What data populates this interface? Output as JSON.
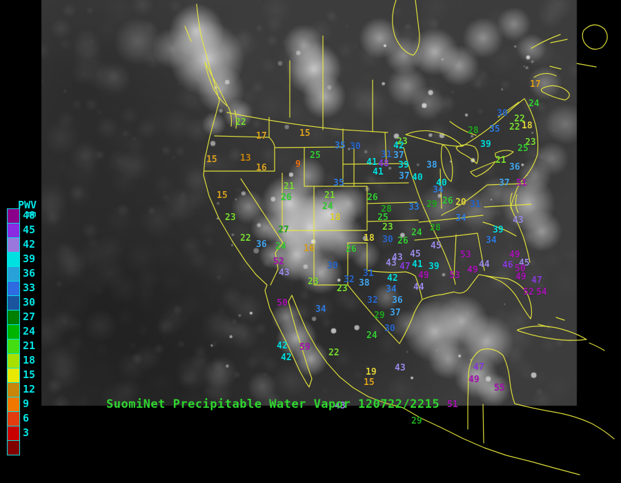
{
  "header": {
    "title": "SuomiNet Precipitable Water Vapor 120722/2215",
    "title_color": "#2FD62F"
  },
  "legend": {
    "title": "PWV",
    "unit": "mm",
    "tick_color": "#00E5E5",
    "values": [
      48,
      45,
      42,
      39,
      36,
      33,
      30,
      27,
      24,
      21,
      18,
      15,
      12,
      9,
      6,
      3
    ],
    "colors": [
      "#8B008B",
      "#8A2BE2",
      "#9977DD",
      "#00E0E0",
      "#28A0D8",
      "#2F6BE0",
      "#1A549E",
      "#007F00",
      "#00B400",
      "#44DD11",
      "#A8E000",
      "#E8E800",
      "#C8860B",
      "#F07800",
      "#E23C0F",
      "#C80000",
      "#800000"
    ]
  },
  "palette": [
    {
      "min": 49,
      "color": "#A713B3"
    },
    {
      "min": 46,
      "color": "#8A3BDC"
    },
    {
      "min": 43,
      "color": "#9B8BE8"
    },
    {
      "min": 39,
      "color": "#00DFDF"
    },
    {
      "min": 36,
      "color": "#43A7F0"
    },
    {
      "min": 33,
      "color": "#2F7BE0"
    },
    {
      "min": 30,
      "color": "#2767CE"
    },
    {
      "min": 27,
      "color": "#1FA81F"
    },
    {
      "min": 24,
      "color": "#35CC35"
    },
    {
      "min": 21,
      "color": "#7ADD33"
    },
    {
      "min": 18,
      "color": "#E2D53A"
    },
    {
      "min": 15,
      "color": "#DCA21F"
    },
    {
      "min": 12,
      "color": "#C8860B"
    },
    {
      "min": 9,
      "color": "#ED6F0E"
    },
    {
      "min": 6,
      "color": "#E0330F"
    },
    {
      "min": 3,
      "color": "#C40000"
    },
    {
      "min": 0,
      "color": "#8B0000"
    }
  ],
  "map": {
    "background": "#000000",
    "border_color": "#E9E93C"
  },
  "stations": [
    [
      22,
      341,
      171
    ],
    [
      17,
      371,
      191
    ],
    [
      15,
      434,
      187
    ],
    [
      25,
      449,
      219
    ],
    [
      35,
      485,
      205
    ],
    [
      30,
      507,
      206
    ],
    [
      15,
      299,
      225
    ],
    [
      13,
      348,
      223
    ],
    [
      16,
      371,
      237
    ],
    [
      9,
      428,
      232
    ],
    [
      15,
      314,
      277
    ],
    [
      23,
      326,
      309
    ],
    [
      22,
      348,
      339
    ],
    [
      36,
      371,
      348
    ],
    [
      21,
      411,
      264
    ],
    [
      26,
      407,
      280
    ],
    [
      27,
      403,
      327
    ],
    [
      24,
      399,
      351
    ],
    [
      52,
      396,
      373
    ],
    [
      43,
      404,
      389
    ],
    [
      50,
      401,
      433
    ],
    [
      59,
      434,
      497
    ],
    [
      42,
      401,
      495
    ],
    [
      42,
      407,
      512
    ],
    [
      22,
      476,
      505
    ],
    [
      34,
      457,
      442
    ],
    [
      23,
      446,
      402
    ],
    [
      23,
      488,
      412
    ],
    [
      30,
      474,
      379
    ],
    [
      32,
      498,
      399
    ],
    [
      38,
      520,
      404
    ],
    [
      31,
      526,
      390
    ],
    [
      26,
      501,
      355
    ],
    [
      16,
      440,
      354
    ],
    [
      18,
      478,
      309
    ],
    [
      24,
      467,
      293
    ],
    [
      21,
      470,
      277
    ],
    [
      35,
      483,
      259
    ],
    [
      18,
      527,
      339
    ],
    [
      26,
      532,
      280
    ],
    [
      28,
      552,
      297
    ],
    [
      25,
      547,
      309
    ],
    [
      23,
      554,
      323
    ],
    [
      30,
      554,
      341
    ],
    [
      26,
      576,
      343
    ],
    [
      33,
      592,
      294
    ],
    [
      29,
      618,
      290
    ],
    [
      26,
      641,
      285
    ],
    [
      20,
      660,
      287
    ],
    [
      31,
      681,
      290
    ],
    [
      34,
      660,
      310
    ],
    [
      24,
      596,
      331
    ],
    [
      28,
      623,
      324
    ],
    [
      45,
      624,
      350
    ],
    [
      45,
      594,
      362
    ],
    [
      43,
      568,
      367
    ],
    [
      43,
      559,
      375
    ],
    [
      47,
      579,
      380
    ],
    [
      41,
      597,
      377
    ],
    [
      39,
      621,
      380
    ],
    [
      42,
      561,
      397
    ],
    [
      49,
      606,
      393
    ],
    [
      44,
      599,
      410
    ],
    [
      34,
      559,
      413
    ],
    [
      53,
      667,
      363
    ],
    [
      53,
      651,
      393
    ],
    [
      49,
      677,
      385
    ],
    [
      44,
      694,
      377
    ],
    [
      49,
      738,
      363
    ],
    [
      46,
      728,
      378
    ],
    [
      45,
      752,
      375
    ],
    [
      50,
      746,
      383
    ],
    [
      49,
      747,
      395
    ],
    [
      47,
      770,
      400
    ],
    [
      43,
      743,
      313
    ],
    [
      39,
      714,
      327
    ],
    [
      34,
      704,
      342
    ],
    [
      52,
      758,
      417
    ],
    [
      54,
      777,
      417
    ],
    [
      32,
      532,
      429
    ],
    [
      36,
      568,
      429
    ],
    [
      37,
      565,
      447
    ],
    [
      29,
      542,
      451
    ],
    [
      30,
      557,
      470
    ],
    [
      24,
      531,
      480
    ],
    [
      19,
      530,
      533
    ],
    [
      15,
      527,
      548
    ],
    [
      43,
      572,
      527
    ],
    [
      30,
      720,
      158
    ],
    [
      24,
      766,
      144
    ],
    [
      22,
      745,
      166
    ],
    [
      22,
      738,
      178
    ],
    [
      18,
      756,
      176
    ],
    [
      17,
      768,
      116
    ],
    [
      28,
      678,
      183
    ],
    [
      35,
      709,
      181
    ],
    [
      39,
      696,
      203
    ],
    [
      23,
      761,
      200
    ],
    [
      25,
      750,
      209
    ],
    [
      21,
      718,
      226
    ],
    [
      36,
      738,
      236
    ],
    [
      37,
      723,
      259
    ],
    [
      51,
      748,
      259
    ],
    [
      23,
      575,
      199
    ],
    [
      42,
      570,
      205
    ],
    [
      31,
      552,
      218
    ],
    [
      37,
      570,
      219
    ],
    [
      48,
      548,
      231
    ],
    [
      41,
      531,
      229
    ],
    [
      41,
      540,
      243
    ],
    [
      39,
      577,
      233
    ],
    [
      38,
      618,
      233
    ],
    [
      37,
      578,
      249
    ],
    [
      40,
      597,
      251
    ],
    [
      40,
      632,
      259
    ],
    [
      34,
      627,
      269
    ],
    [
      47,
      686,
      526
    ],
    [
      49,
      679,
      544
    ],
    [
      55,
      716,
      556
    ],
    [
      51,
      648,
      580
    ],
    [
      29,
      596,
      604
    ],
    [
      43,
      485,
      582
    ]
  ]
}
